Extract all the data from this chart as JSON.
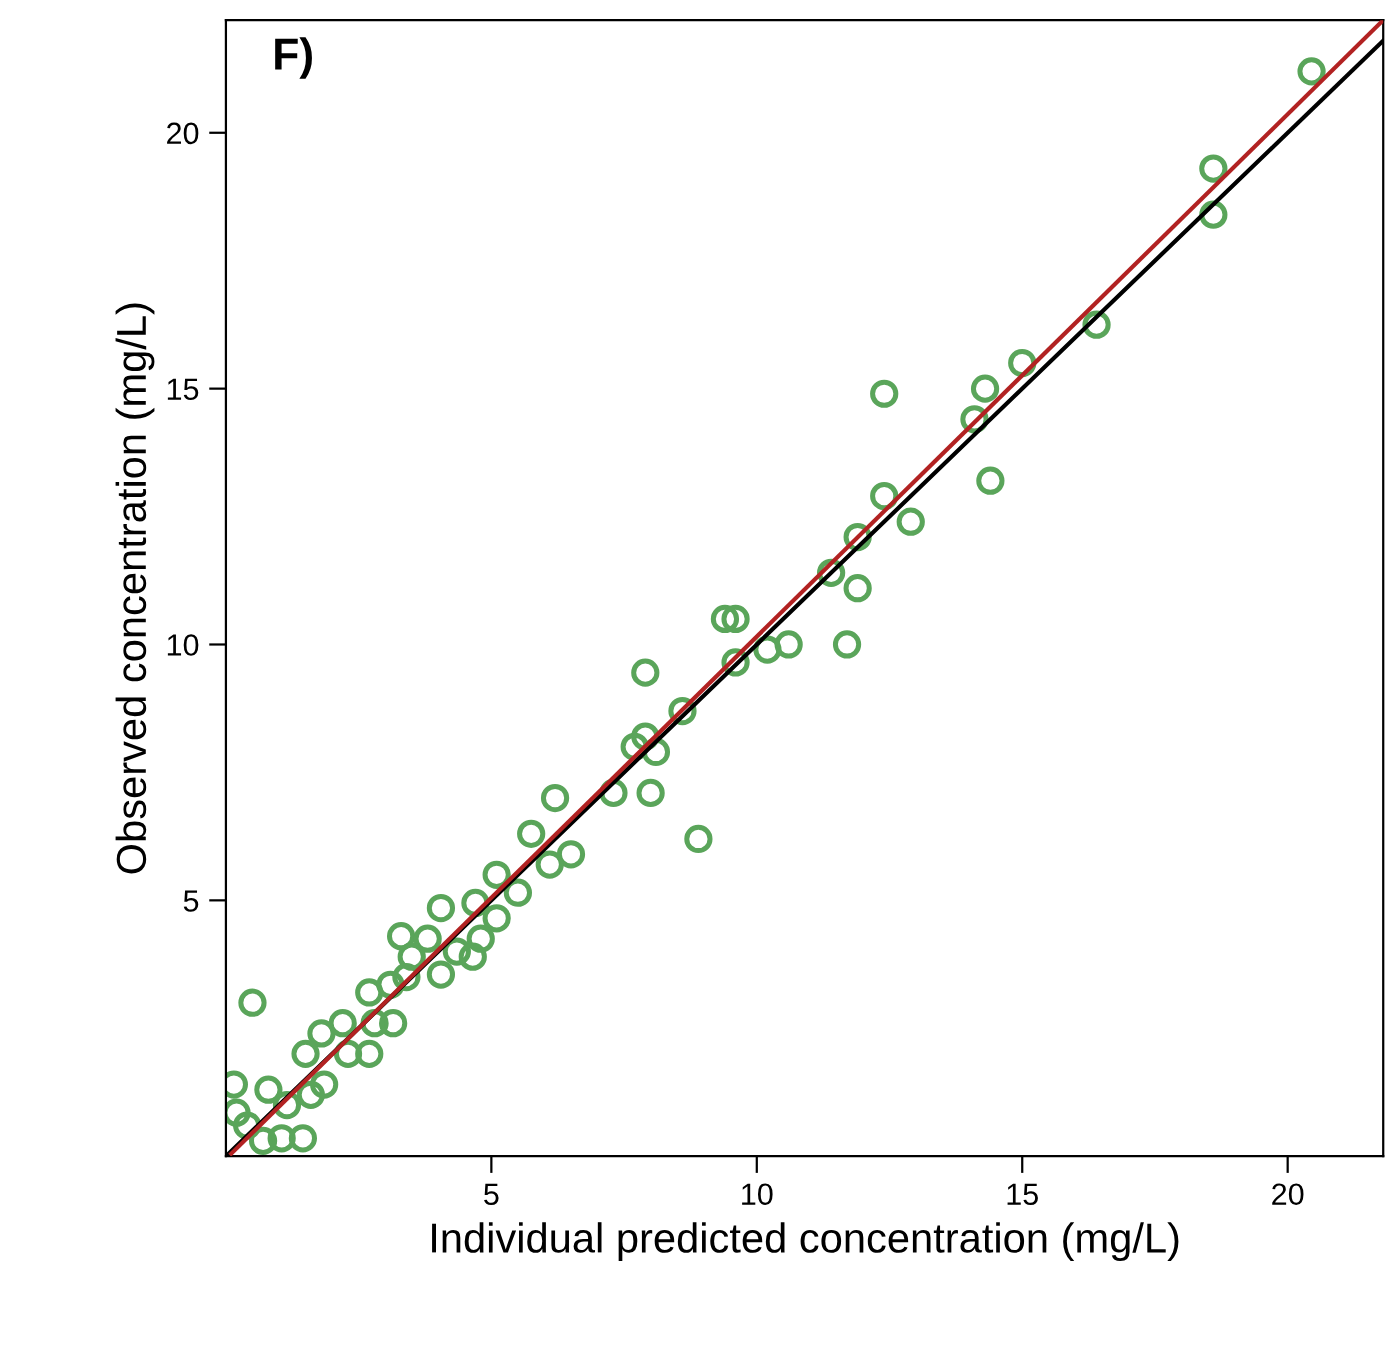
{
  "chart_data": {
    "type": "scatter",
    "xlabel": "Individual predicted concentration (mg/L)",
    "ylabel": "Observed concentration (mg/L)",
    "annotations": [
      "F)"
    ],
    "xlim": [
      0,
      21.8
    ],
    "ylim": [
      0,
      22.2
    ],
    "xticks": [
      5,
      10,
      15,
      20
    ],
    "yticks": [
      5,
      10,
      15,
      20
    ],
    "grid": false,
    "series": [
      {
        "marker": "circle",
        "color": "#5aa55a",
        "x": [
          20.45,
          18.6,
          18.6,
          16.4,
          15.0,
          14.3,
          12.4,
          14.1,
          14.4,
          12.4,
          12.9,
          11.9,
          11.4,
          11.9,
          11.7,
          10.6,
          10.2,
          9.6,
          9.4,
          9.6,
          7.9,
          8.6,
          7.9,
          8.1,
          7.7,
          8.0,
          8.9,
          7.3,
          6.2,
          5.75,
          6.5,
          6.1,
          5.1,
          5.5,
          4.7,
          4.05,
          5.1,
          3.3,
          3.8,
          4.8,
          4.35,
          4.65,
          3.5,
          2.7,
          3.1,
          3.4,
          4.05,
          0.5,
          1.8,
          2.2,
          1.5,
          2.8,
          3.15,
          2.7,
          2.3,
          1.85,
          1.6,
          0.8,
          0.15,
          0.2,
          1.15,
          1.05,
          1.45,
          0.7,
          0.4
        ],
        "values": [
          21.2,
          19.3,
          18.4,
          16.25,
          15.5,
          15.0,
          14.9,
          14.4,
          13.2,
          12.9,
          12.4,
          12.1,
          11.4,
          11.1,
          10.0,
          10.0,
          9.9,
          9.65,
          10.5,
          10.5,
          9.45,
          8.7,
          8.2,
          7.9,
          8.0,
          7.1,
          6.2,
          7.1,
          7.0,
          6.3,
          5.9,
          5.7,
          5.5,
          5.15,
          4.95,
          4.85,
          4.65,
          4.3,
          4.25,
          4.25,
          4.0,
          3.9,
          3.9,
          3.2,
          3.35,
          3.5,
          3.55,
          3.0,
          2.4,
          2.6,
          2.0,
          2.6,
          2.6,
          2.0,
          2.0,
          1.4,
          1.2,
          1.3,
          1.4,
          0.85,
          1.0,
          0.35,
          0.35,
          0.3,
          0.6
        ]
      },
      {
        "type": "line",
        "color": "#000000",
        "x": [
          0,
          21.8
        ],
        "values": [
          0,
          21.8
        ],
        "line_style": "solid"
      },
      {
        "type": "line",
        "color": "#b22222",
        "x": [
          0.1,
          21.8
        ],
        "values": [
          0.05,
          22.2
        ],
        "line_style": "solid"
      }
    ]
  }
}
